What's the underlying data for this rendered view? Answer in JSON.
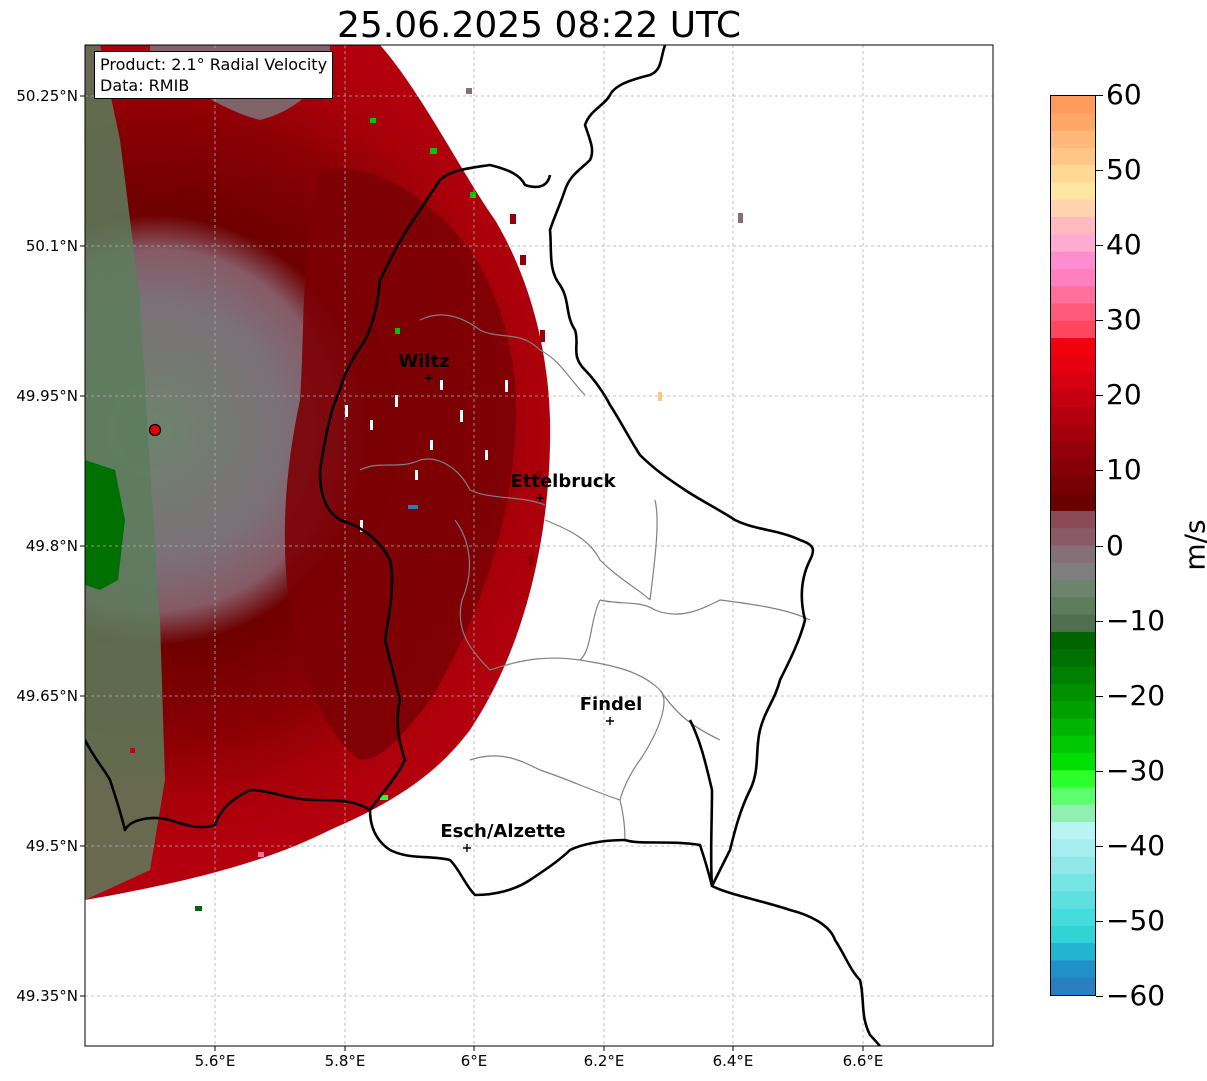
{
  "title": "25.06.2025 08:22 UTC",
  "info": {
    "product": "Product: 2.1° Radial Velocity",
    "data": "Data: RMIB"
  },
  "axes": {
    "lat_labels": [
      "50.25°N",
      "50.1°N",
      "49.95°N",
      "49.8°N",
      "49.65°N",
      "49.5°N",
      "49.35°N"
    ],
    "lon_labels": [
      "5.6°E",
      "5.8°E",
      "6°E",
      "6.2°E",
      "6.4°E",
      "6.6°E"
    ]
  },
  "cities": [
    {
      "name": "Wiltz"
    },
    {
      "name": "Ettelbruck"
    },
    {
      "name": "Findel"
    },
    {
      "name": "Esch/Alzette"
    }
  ],
  "radar_site_color": "#e00000",
  "colorbar": {
    "unit": "m/s",
    "tick_labels": [
      "60",
      "50",
      "40",
      "30",
      "20",
      "10",
      "0",
      "−10",
      "−20",
      "−30",
      "−40",
      "−50",
      "−60"
    ],
    "colors": [
      "#ff9a5a",
      "#ffa766",
      "#ffb877",
      "#ffc688",
      "#ffd896",
      "#ffe6a2",
      "#ffd2b0",
      "#ffb9c0",
      "#ffaad0",
      "#ff8ccf",
      "#ff7fbf",
      "#ff6f9e",
      "#ff5a7a",
      "#ff4660",
      "#f30010",
      "#e60010",
      "#d60010",
      "#c40010",
      "#b4000e",
      "#a4000c",
      "#94000a",
      "#860008",
      "#760004",
      "#6a0000",
      "#8b4b56",
      "#8a5a66",
      "#857078",
      "#7e7e7e",
      "#6c846c",
      "#5c7c5c",
      "#4e704e",
      "#006400",
      "#007000",
      "#008000",
      "#009000",
      "#00a000",
      "#00b400",
      "#00c800",
      "#00e000",
      "#2cff2c",
      "#5cff6c",
      "#90f0b0",
      "#b8f4f4",
      "#a6eeee",
      "#90e8e8",
      "#74e4e4",
      "#5ee0e0",
      "#44dcdc",
      "#30d4d4",
      "#22b4d0",
      "#2090c8",
      "#2880c0"
    ]
  }
}
